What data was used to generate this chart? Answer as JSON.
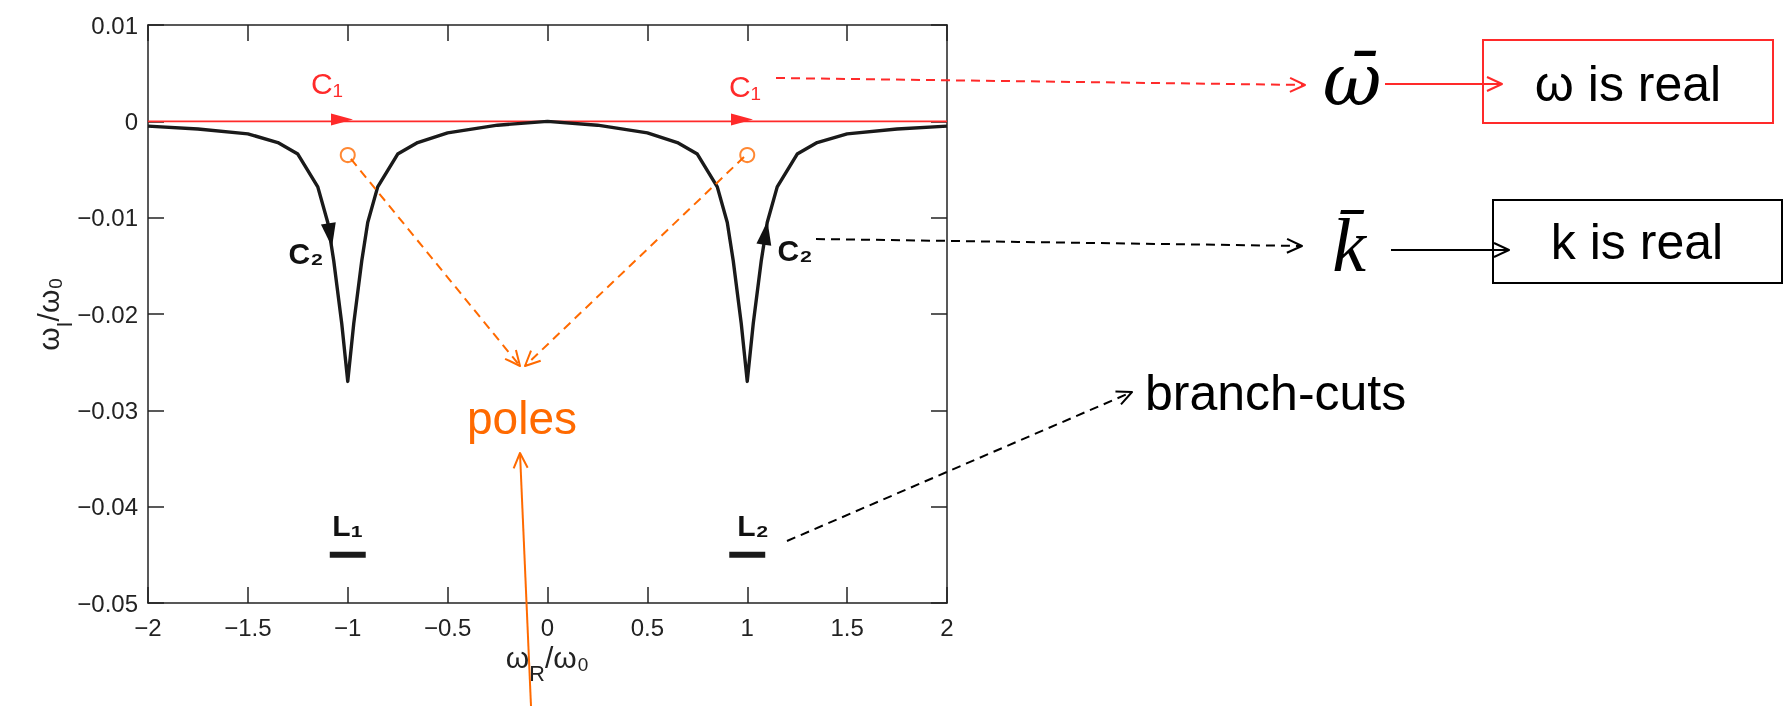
{
  "chart_data": {
    "type": "line",
    "xlabel": "ω$_{R}$/ω₀",
    "ylabel": "ω$_{I}$/ω₀",
    "xlim": [
      -2,
      2
    ],
    "xticks": [
      {
        "value": -2,
        "label": "−2"
      },
      {
        "value": -1.5,
        "label": "−1.5"
      },
      {
        "value": -1,
        "label": "−1"
      },
      {
        "value": -0.5,
        "label": "−0.5"
      },
      0,
      0.5,
      1,
      1.5,
      2
    ],
    "ylim": [
      -0.05,
      0.01
    ],
    "yticks": [
      {
        "value": -0.05,
        "label": "−0.05"
      },
      {
        "value": -0.04,
        "label": "−0.04"
      },
      {
        "value": -0.03,
        "label": "−0.03"
      },
      {
        "value": -0.02,
        "label": "−0.02"
      },
      {
        "value": -0.01,
        "label": "−0.01"
      },
      0,
      0.01
    ],
    "series": [
      {
        "color": "#ff2a2a",
        "x": [
          -2,
          2
        ],
        "values": [
          0,
          0
        ]
      },
      {
        "color": "#1a1a1a",
        "x": [
          -2,
          -1.75,
          -1.5,
          -1.35,
          -1.25,
          -1.15,
          -1.1,
          -1.07,
          -1.03,
          -1,
          -0.97,
          -0.93,
          -0.9,
          -0.85,
          -0.75,
          -0.65,
          -0.5,
          -0.25,
          0,
          0.25,
          0.5,
          0.65,
          0.75,
          0.85,
          0.9,
          0.93,
          0.97,
          1,
          1.03,
          1.07,
          1.1,
          1.15,
          1.25,
          1.35,
          1.5,
          1.75,
          2
        ],
        "values": [
          -0.0005,
          -0.0008,
          -0.0013,
          -0.0022,
          -0.0034,
          -0.0068,
          -0.0105,
          -0.0145,
          -0.021,
          -0.027,
          -0.021,
          -0.0145,
          -0.0105,
          -0.0068,
          -0.0034,
          -0.0022,
          -0.0012,
          -0.0004,
          0,
          -0.0004,
          -0.0012,
          -0.0022,
          -0.0034,
          -0.0068,
          -0.0105,
          -0.0145,
          -0.021,
          -0.027,
          -0.021,
          -0.0145,
          -0.0105,
          -0.0068,
          -0.0034,
          -0.0022,
          -0.0013,
          -0.0008,
          -0.0005
        ]
      },
      {
        "type": "scatter",
        "marker": "circle",
        "color": "#ff6a00",
        "x": [
          -1,
          1
        ],
        "values": [
          -0.0035,
          -0.0035
        ]
      },
      {
        "color": "#1a1a1a",
        "x": [
          -1.09,
          -0.91
        ],
        "values": [
          -0.045,
          -0.045
        ]
      },
      {
        "color": "#1a1a1a",
        "x": [
          0.91,
          1.09
        ],
        "values": [
          -0.045,
          -0.045
        ]
      }
    ],
    "annotations": [
      "C₁",
      "C₁",
      "C₂",
      "C₂",
      "L₁",
      "L₂",
      {
        "text": "poles",
        "x": -1,
        "y": -0.0035
      },
      "branch-cuts",
      "ω̄",
      "k̄",
      "ω is real",
      "k is real"
    ]
  }
}
